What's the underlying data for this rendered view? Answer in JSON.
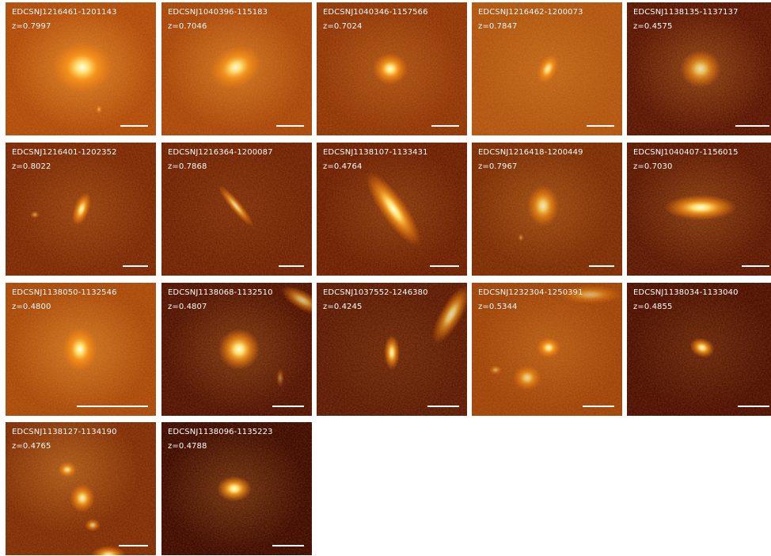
{
  "galaxies": [
    {
      "id": "EDCSNJ1216461-1201143",
      "z": "z=0.7997"
    },
    {
      "id": "EDCSNJ1040396-115183",
      "z": "z=0.7046"
    },
    {
      "id": "EDCSNJ1040346-1157566",
      "z": "z=0.7024"
    },
    {
      "id": "EDCSNJ1216462-1200073",
      "z": "z=0.7847"
    },
    {
      "id": "EDCSNJ1138135-1137137",
      "z": "z=0.4575"
    },
    {
      "id": "EDCSNJ1216401-1202352",
      "z": "z=0.8022"
    },
    {
      "id": "EDCSNJ1216364-1200087",
      "z": "z=0.7868"
    },
    {
      "id": "EDCSNJ1138107-1133431",
      "z": "z=0.4764"
    },
    {
      "id": "EDCSNJ1216418-1200449",
      "z": "z=0.7967"
    },
    {
      "id": "EDCSNJ1040407-1156015",
      "z": "z=0.7030"
    },
    {
      "id": "EDCSNJ1138050-1132546",
      "z": "z=0.4800"
    },
    {
      "id": "EDCSNJ1138068-1132510",
      "z": "z=0.4807"
    },
    {
      "id": "EDCSNJ1037552-1246380",
      "z": "z=0.4245"
    },
    {
      "id": "EDCSNJ1232304-1250391",
      "z": "z=0.5344"
    },
    {
      "id": "EDCSNJ1138034-1133040",
      "z": "z=0.4855"
    },
    {
      "id": "EDCSNJ1138127-1134190",
      "z": "z=0.4765"
    },
    {
      "id": "EDCSNJ1138096-1135223",
      "z": "z=0.4788"
    }
  ],
  "colors": {
    "background_dark": "#4a0b00",
    "background_mid": "#8a2e00",
    "glow": "#ffd060",
    "core": "#ffffea",
    "scalebar": "#ffffff"
  }
}
